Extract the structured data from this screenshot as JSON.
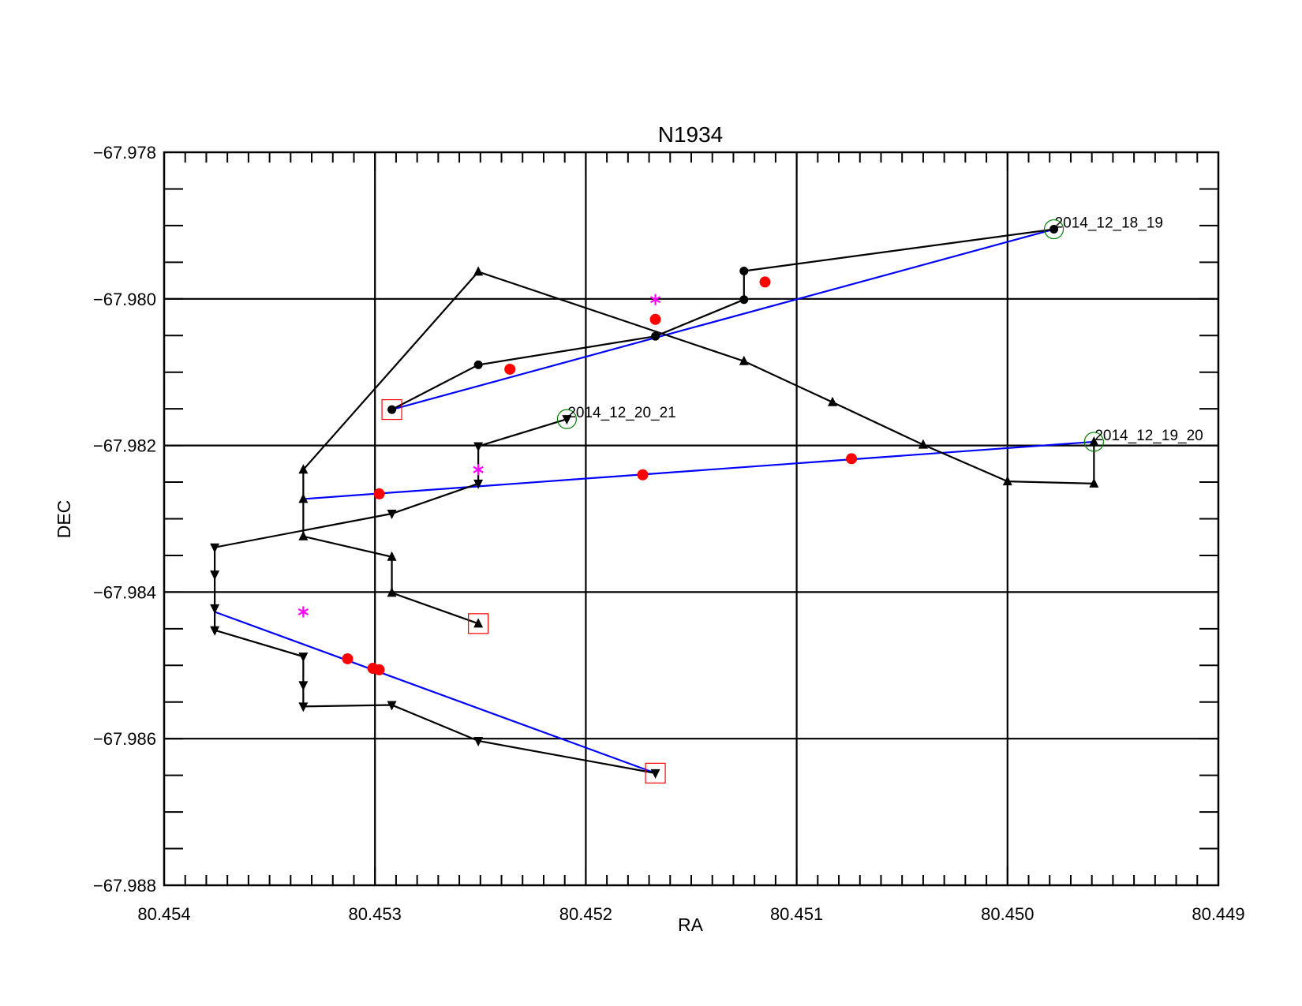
{
  "chart_data": {
    "type": "line",
    "title": "N1934",
    "xlabel": "RA",
    "ylabel": "DEC",
    "xlim": [
      80.454,
      80.449
    ],
    "ylim": [
      -67.988,
      -67.978
    ],
    "x_reversed": true,
    "grid": true,
    "xticks": [
      80.454,
      80.453,
      80.452,
      80.451,
      80.45,
      80.449
    ],
    "xtick_labels": [
      "80.454",
      "80.453",
      "80.452",
      "80.451",
      "80.450",
      "80.449"
    ],
    "yticks": [
      -67.978,
      -67.98,
      -67.982,
      -67.984,
      -67.986,
      -67.988
    ],
    "ytick_labels": [
      "−67.978",
      "−67.980",
      "−67.982",
      "−67.984",
      "−67.986",
      "−67.988"
    ],
    "x_minor_step": 0.0001,
    "y_minor_step": 0.0005,
    "colors": {
      "track": "#000000",
      "fit": "#0000ff",
      "fit_point": "#ff0000",
      "star": "#ff00ff",
      "start_square": "#ff0000",
      "end_circle": "#008000"
    },
    "tracks": [
      {
        "label": "2014_12_18_19",
        "marker": "circle",
        "points": [
          [
            80.45292,
            -67.98151
          ],
          [
            80.45251,
            -67.9809
          ],
          [
            80.45167,
            -67.98051
          ],
          [
            80.45125,
            -67.98001
          ],
          [
            80.45125,
            -67.97962
          ],
          [
            80.44978,
            -67.97905
          ]
        ],
        "fit_line": [
          [
            80.45292,
            -67.98151
          ],
          [
            80.44978,
            -67.97905
          ]
        ],
        "fit_points": [
          [
            80.45236,
            -67.98096
          ],
          [
            80.45167,
            -67.98028
          ],
          [
            80.45115,
            -67.97977
          ]
        ]
      },
      {
        "label": "2014_12_19_20",
        "marker": "triangle-up",
        "points": [
          [
            80.45251,
            -67.98443
          ],
          [
            80.45292,
            -67.98401
          ],
          [
            80.45292,
            -67.98352
          ],
          [
            80.45334,
            -67.98324
          ],
          [
            80.45334,
            -67.98273
          ],
          [
            80.45334,
            -67.98233
          ],
          [
            80.45251,
            -67.97963
          ],
          [
            80.45125,
            -67.98085
          ],
          [
            80.45083,
            -67.98141
          ],
          [
            80.4504,
            -67.98199
          ],
          [
            80.45,
            -67.98249
          ],
          [
            80.44959,
            -67.98252
          ],
          [
            80.44959,
            -67.98195
          ]
        ],
        "fit_line": [
          [
            80.45334,
            -67.98273
          ],
          [
            80.44959,
            -67.98195
          ]
        ],
        "fit_points": [
          [
            80.45298,
            -67.98266
          ],
          [
            80.45173,
            -67.9824
          ],
          [
            80.45074,
            -67.98218
          ]
        ]
      },
      {
        "label": "2014_12_20_21",
        "marker": "triangle-down",
        "points": [
          [
            80.45167,
            -67.98647
          ],
          [
            80.45251,
            -67.98603
          ],
          [
            80.45292,
            -67.98554
          ],
          [
            80.45334,
            -67.98556
          ],
          [
            80.45334,
            -67.98527
          ],
          [
            80.45334,
            -67.98488
          ],
          [
            80.45376,
            -67.98452
          ],
          [
            80.45376,
            -67.98422
          ],
          [
            80.45376,
            -67.98376
          ],
          [
            80.45376,
            -67.98339
          ],
          [
            80.45292,
            -67.98293
          ],
          [
            80.45251,
            -67.98252
          ],
          [
            80.45251,
            -67.98201
          ],
          [
            80.45209,
            -67.98164
          ]
        ],
        "fit_line": [
          [
            80.45376,
            -67.98427
          ],
          [
            80.45167,
            -67.98647
          ]
        ],
        "fit_points": [
          [
            80.45313,
            -67.98491
          ],
          [
            80.45301,
            -67.98504
          ],
          [
            80.45298,
            -67.98506
          ]
        ]
      }
    ],
    "star_points": [
      [
        80.45167,
        -67.98001
      ],
      [
        80.45251,
        -67.98233
      ],
      [
        80.45334,
        -67.98427
      ]
    ]
  }
}
